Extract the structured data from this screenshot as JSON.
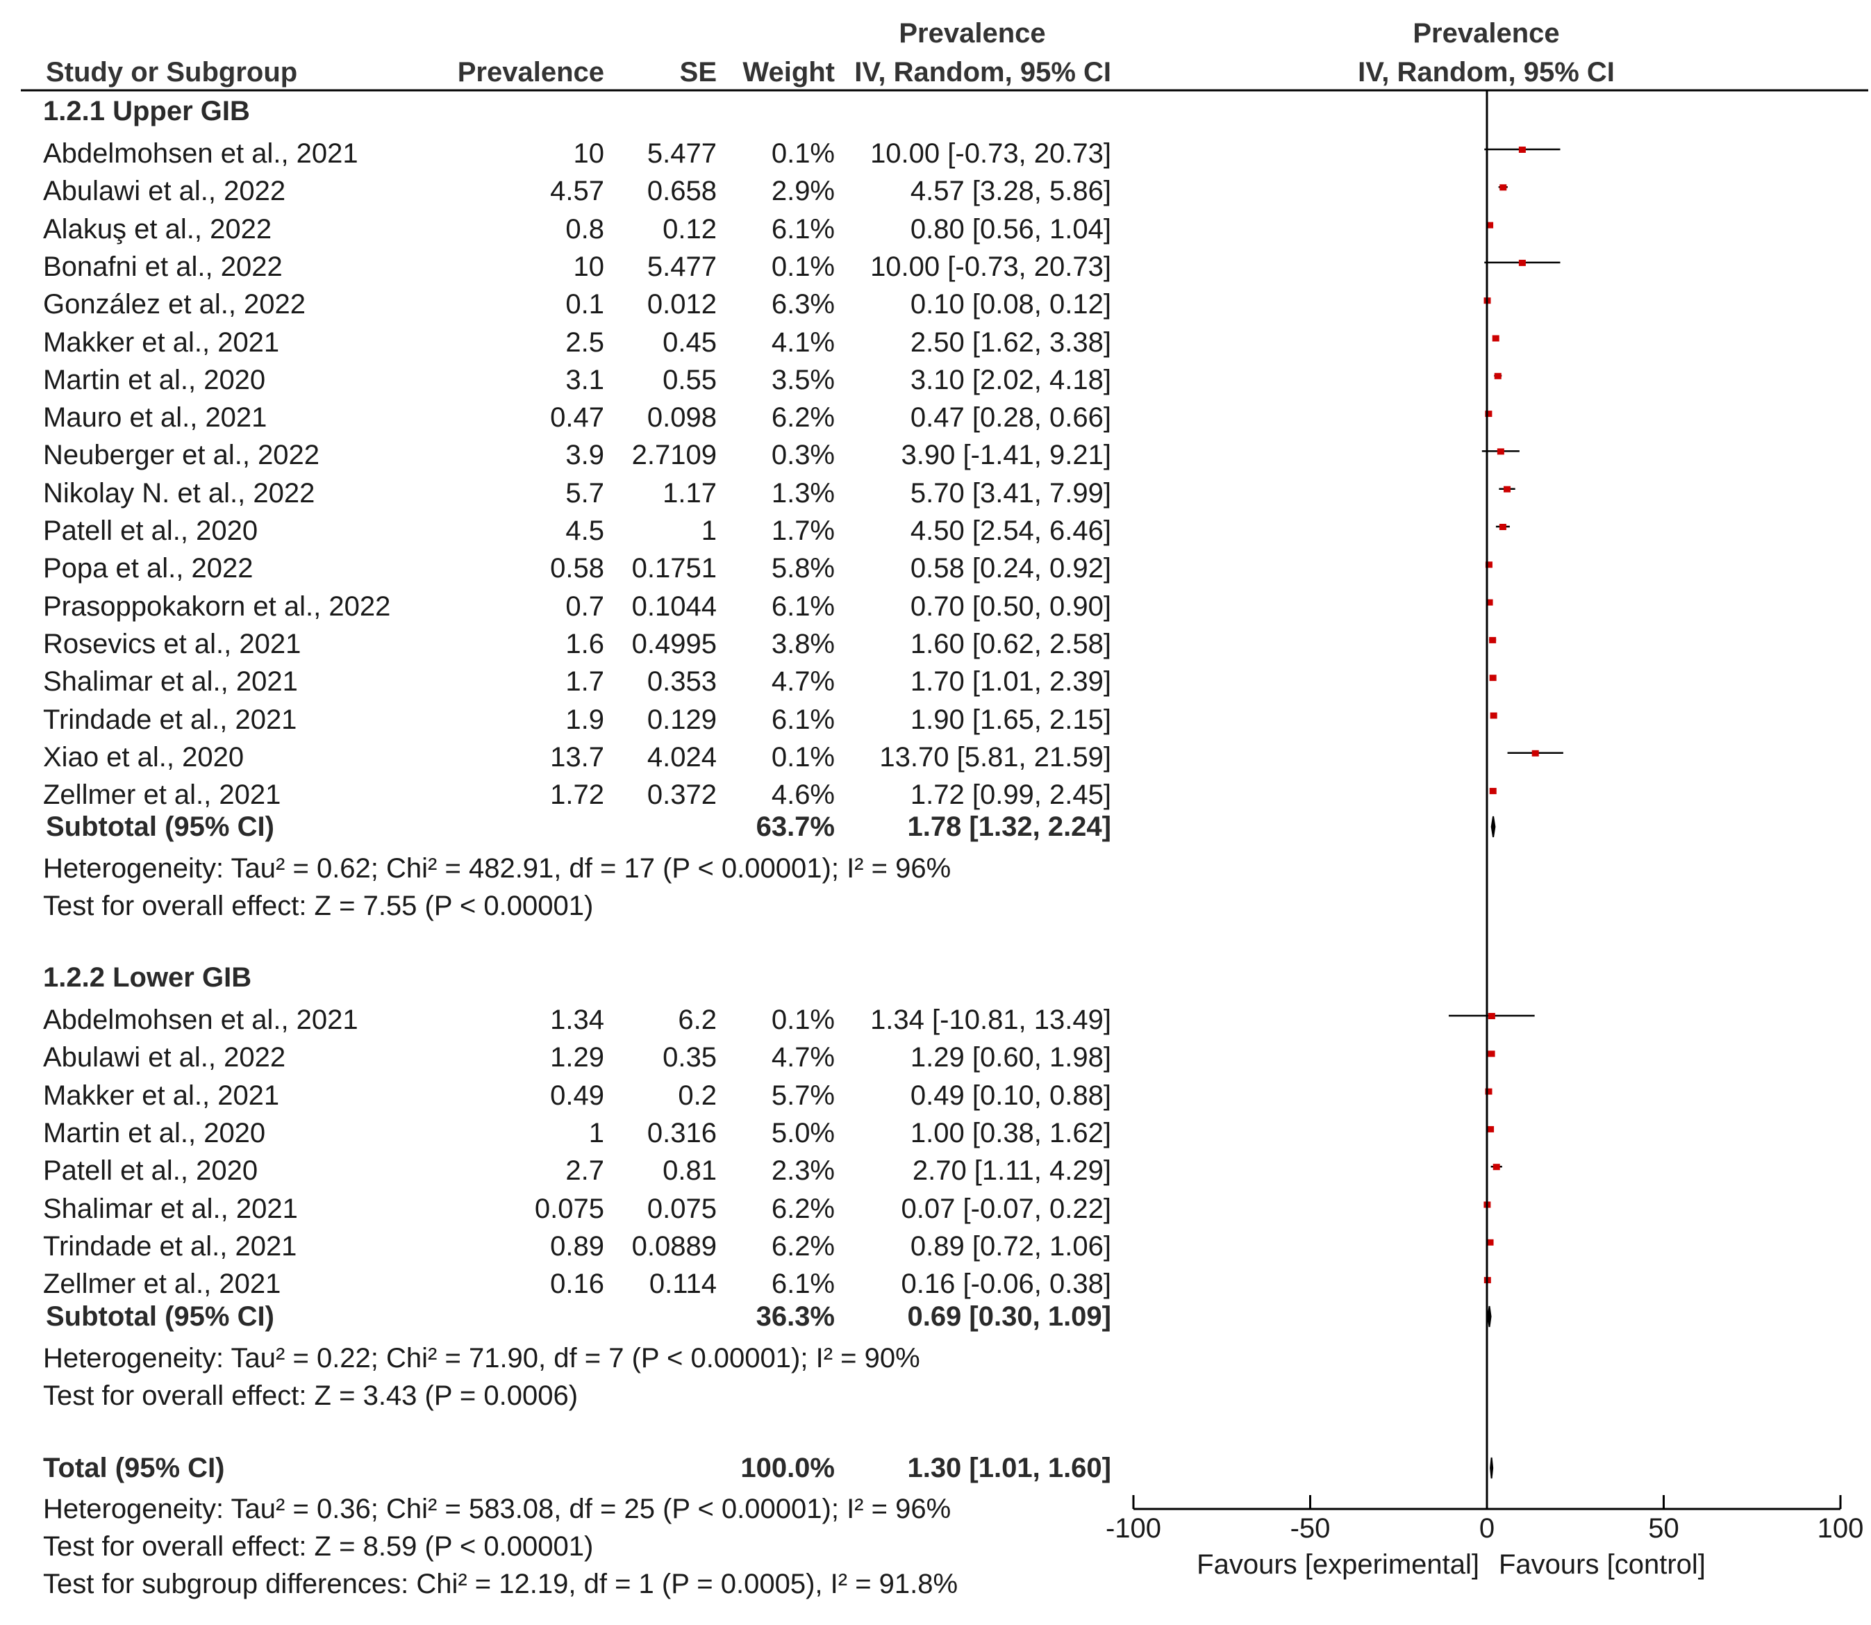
{
  "header": {
    "study": "Study or Subgroup",
    "prevalence": "Prevalence",
    "se": "SE",
    "weight": "Weight",
    "ci_top": "Prevalence",
    "ci_method": "IV, Random, 95% CI",
    "plot_top": "Prevalence",
    "plot_method": "IV, Random, 95% CI"
  },
  "colors": {
    "marker": "#cc0000",
    "line": "#000000",
    "text": "#1a1a1a"
  },
  "chart_data": {
    "type": "forest",
    "xlim": [
      -100,
      100
    ],
    "ticks": [
      -100,
      -50,
      0,
      50,
      100
    ],
    "tick_labels": [
      "-100",
      "-50",
      "0",
      "50",
      "100"
    ],
    "favours_left": "Favours [experimental]",
    "favours_right": "Favours [control]",
    "subgroups": [
      {
        "title": "1.2.1 Upper GIB",
        "studies": [
          {
            "name": "Abdelmohsen et al., 2021",
            "prev": "10",
            "se": "5.477",
            "weight": "0.1%",
            "ci": "10.00 [-0.73, 20.73]",
            "est": 10.0,
            "lo": -0.73,
            "hi": 20.73
          },
          {
            "name": "Abulawi et al., 2022",
            "prev": "4.57",
            "se": "0.658",
            "weight": "2.9%",
            "ci": "4.57 [3.28, 5.86]",
            "est": 4.57,
            "lo": 3.28,
            "hi": 5.86
          },
          {
            "name": "Alakuş et al., 2022",
            "prev": "0.8",
            "se": "0.12",
            "weight": "6.1%",
            "ci": "0.80 [0.56, 1.04]",
            "est": 0.8,
            "lo": 0.56,
            "hi": 1.04
          },
          {
            "name": "Bonafni et al., 2022",
            "prev": "10",
            "se": "5.477",
            "weight": "0.1%",
            "ci": "10.00 [-0.73, 20.73]",
            "est": 10.0,
            "lo": -0.73,
            "hi": 20.73
          },
          {
            "name": "González et al., 2022",
            "prev": "0.1",
            "se": "0.012",
            "weight": "6.3%",
            "ci": "0.10 [0.08, 0.12]",
            "est": 0.1,
            "lo": 0.08,
            "hi": 0.12
          },
          {
            "name": "Makker et al., 2021",
            "prev": "2.5",
            "se": "0.45",
            "weight": "4.1%",
            "ci": "2.50 [1.62, 3.38]",
            "est": 2.5,
            "lo": 1.62,
            "hi": 3.38
          },
          {
            "name": "Martin et al., 2020",
            "prev": "3.1",
            "se": "0.55",
            "weight": "3.5%",
            "ci": "3.10 [2.02, 4.18]",
            "est": 3.1,
            "lo": 2.02,
            "hi": 4.18
          },
          {
            "name": "Mauro et al., 2021",
            "prev": "0.47",
            "se": "0.098",
            "weight": "6.2%",
            "ci": "0.47 [0.28, 0.66]",
            "est": 0.47,
            "lo": 0.28,
            "hi": 0.66
          },
          {
            "name": "Neuberger et al., 2022",
            "prev": "3.9",
            "se": "2.7109",
            "weight": "0.3%",
            "ci": "3.90 [-1.41, 9.21]",
            "est": 3.9,
            "lo": -1.41,
            "hi": 9.21
          },
          {
            "name": "Nikolay N. et al., 2022",
            "prev": "5.7",
            "se": "1.17",
            "weight": "1.3%",
            "ci": "5.70 [3.41, 7.99]",
            "est": 5.7,
            "lo": 3.41,
            "hi": 7.99
          },
          {
            "name": "Patell et al., 2020",
            "prev": "4.5",
            "se": "1",
            "weight": "1.7%",
            "ci": "4.50 [2.54, 6.46]",
            "est": 4.5,
            "lo": 2.54,
            "hi": 6.46
          },
          {
            "name": "Popa et al., 2022",
            "prev": "0.58",
            "se": "0.1751",
            "weight": "5.8%",
            "ci": "0.58 [0.24, 0.92]",
            "est": 0.58,
            "lo": 0.24,
            "hi": 0.92
          },
          {
            "name": "Prasoppokakorn et al., 2022",
            "prev": "0.7",
            "se": "0.1044",
            "weight": "6.1%",
            "ci": "0.70 [0.50, 0.90]",
            "est": 0.7,
            "lo": 0.5,
            "hi": 0.9
          },
          {
            "name": "Rosevics et al., 2021",
            "prev": "1.6",
            "se": "0.4995",
            "weight": "3.8%",
            "ci": "1.60 [0.62, 2.58]",
            "est": 1.6,
            "lo": 0.62,
            "hi": 2.58
          },
          {
            "name": "Shalimar et al., 2021",
            "prev": "1.7",
            "se": "0.353",
            "weight": "4.7%",
            "ci": "1.70 [1.01, 2.39]",
            "est": 1.7,
            "lo": 1.01,
            "hi": 2.39
          },
          {
            "name": "Trindade et al., 2021",
            "prev": "1.9",
            "se": "0.129",
            "weight": "6.1%",
            "ci": "1.90 [1.65, 2.15]",
            "est": 1.9,
            "lo": 1.65,
            "hi": 2.15
          },
          {
            "name": "Xiao et al., 2020",
            "prev": "13.7",
            "se": "4.024",
            "weight": "0.1%",
            "ci": "13.70 [5.81, 21.59]",
            "est": 13.7,
            "lo": 5.81,
            "hi": 21.59
          },
          {
            "name": "Zellmer et al., 2021",
            "prev": "1.72",
            "se": "0.372",
            "weight": "4.6%",
            "ci": "1.72 [0.99, 2.45]",
            "est": 1.72,
            "lo": 0.99,
            "hi": 2.45
          }
        ],
        "subtotal": {
          "label": "Subtotal (95% CI)",
          "weight": "63.7%",
          "ci": "1.78 [1.32, 2.24]",
          "est": 1.78,
          "lo": 1.32,
          "hi": 2.24
        },
        "heterogeneity": "Heterogeneity: Tau² = 0.62; Chi² = 482.91, df = 17 (P < 0.00001); I² = 96%",
        "overall": "Test for overall effect: Z = 7.55 (P < 0.00001)"
      },
      {
        "title": "1.2.2 Lower GIB",
        "studies": [
          {
            "name": "Abdelmohsen et al., 2021",
            "prev": "1.34",
            "se": "6.2",
            "weight": "0.1%",
            "ci": "1.34 [-10.81, 13.49]",
            "est": 1.34,
            "lo": -10.81,
            "hi": 13.49
          },
          {
            "name": "Abulawi et al., 2022",
            "prev": "1.29",
            "se": "0.35",
            "weight": "4.7%",
            "ci": "1.29 [0.60, 1.98]",
            "est": 1.29,
            "lo": 0.6,
            "hi": 1.98
          },
          {
            "name": "Makker et al., 2021",
            "prev": "0.49",
            "se": "0.2",
            "weight": "5.7%",
            "ci": "0.49 [0.10, 0.88]",
            "est": 0.49,
            "lo": 0.1,
            "hi": 0.88
          },
          {
            "name": "Martin et al., 2020",
            "prev": "1",
            "se": "0.316",
            "weight": "5.0%",
            "ci": "1.00 [0.38, 1.62]",
            "est": 1.0,
            "lo": 0.38,
            "hi": 1.62
          },
          {
            "name": "Patell et al., 2020",
            "prev": "2.7",
            "se": "0.81",
            "weight": "2.3%",
            "ci": "2.70 [1.11, 4.29]",
            "est": 2.7,
            "lo": 1.11,
            "hi": 4.29
          },
          {
            "name": "Shalimar et al., 2021",
            "prev": "0.075",
            "se": "0.075",
            "weight": "6.2%",
            "ci": "0.07 [-0.07, 0.22]",
            "est": 0.075,
            "lo": -0.07,
            "hi": 0.22
          },
          {
            "name": "Trindade et al., 2021",
            "prev": "0.89",
            "se": "0.0889",
            "weight": "6.2%",
            "ci": "0.89 [0.72, 1.06]",
            "est": 0.89,
            "lo": 0.72,
            "hi": 1.06
          },
          {
            "name": "Zellmer et al., 2021",
            "prev": "0.16",
            "se": "0.114",
            "weight": "6.1%",
            "ci": "0.16 [-0.06, 0.38]",
            "est": 0.16,
            "lo": -0.06,
            "hi": 0.38
          }
        ],
        "subtotal": {
          "label": "Subtotal (95% CI)",
          "weight": "36.3%",
          "ci": "0.69 [0.30, 1.09]",
          "est": 0.69,
          "lo": 0.3,
          "hi": 1.09
        },
        "heterogeneity": "Heterogeneity: Tau² = 0.22; Chi² = 71.90, df = 7 (P < 0.00001); I² = 90%",
        "overall": "Test for overall effect: Z = 3.43 (P = 0.0006)"
      }
    ],
    "total": {
      "label": "Total (95% CI)",
      "weight": "100.0%",
      "ci": "1.30 [1.01, 1.60]",
      "est": 1.3,
      "lo": 1.01,
      "hi": 1.6,
      "heterogeneity": "Heterogeneity: Tau² = 0.36; Chi² = 583.08, df = 25 (P < 0.00001); I² = 96%",
      "overall": "Test for overall effect: Z = 8.59 (P < 0.00001)",
      "subgroup_diff": "Test for subgroup differences: Chi² = 12.19, df = 1 (P = 0.0005), I² = 91.8%"
    }
  }
}
